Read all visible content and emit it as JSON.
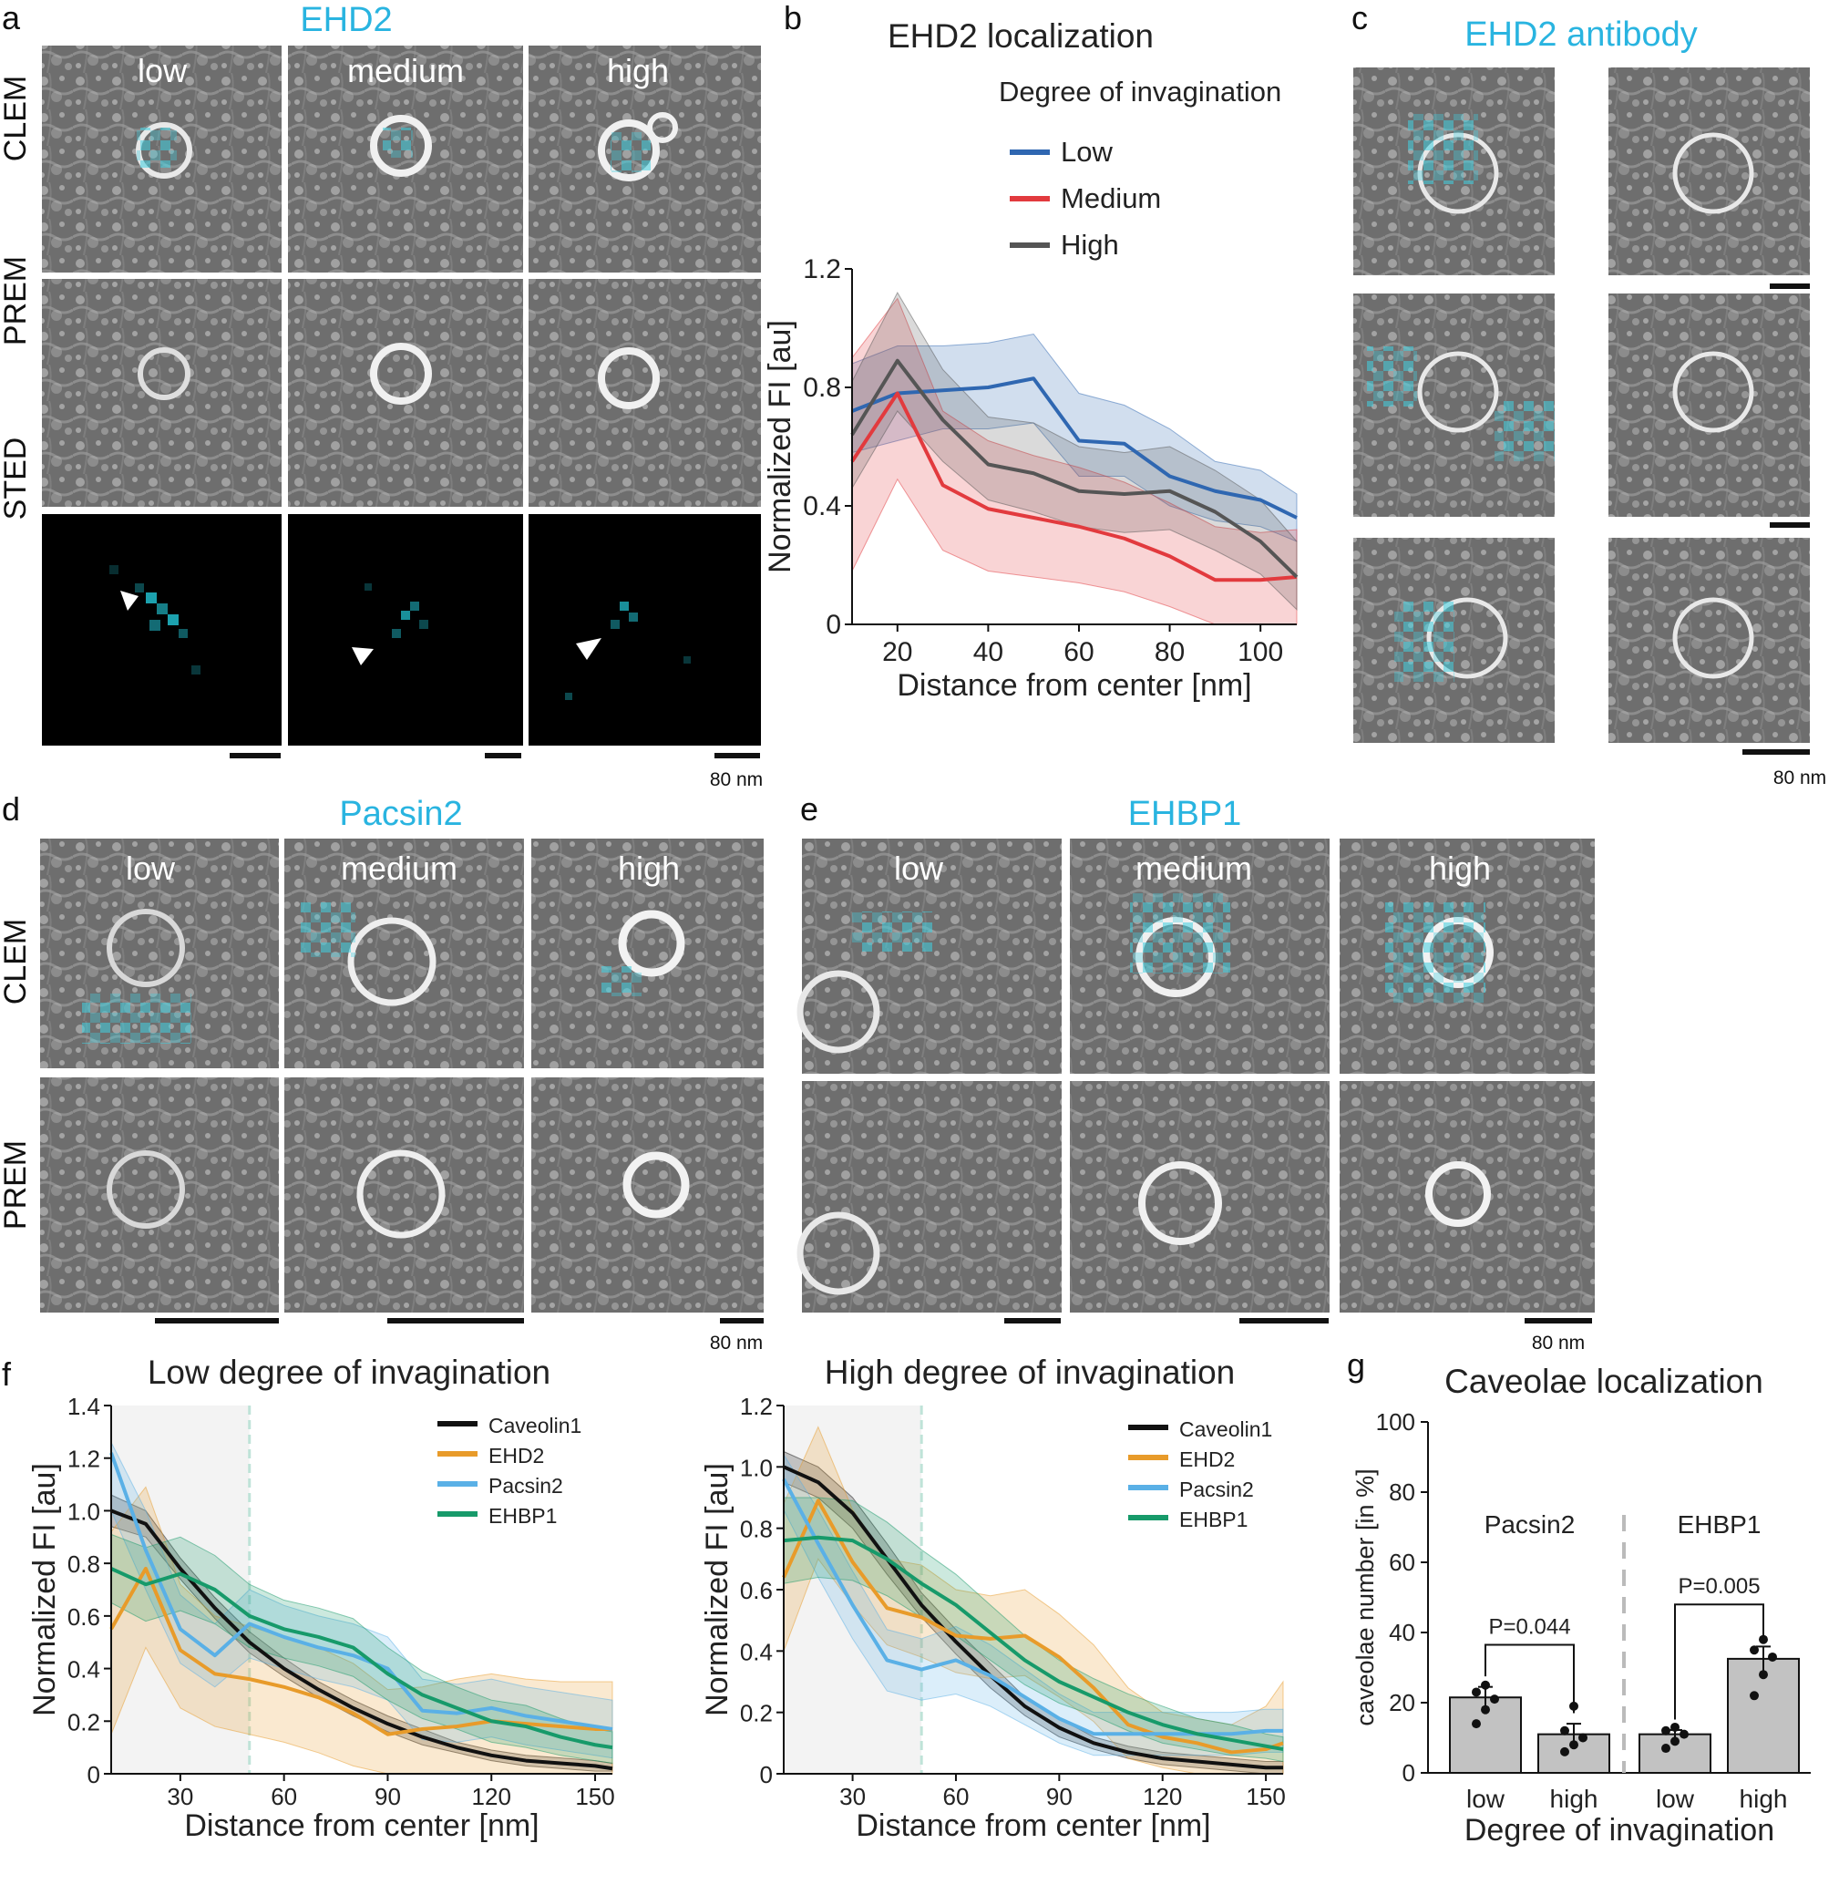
{
  "panels": {
    "a": {
      "letter": "a",
      "title": "EHD2",
      "cols": [
        "low",
        "medium",
        "high"
      ],
      "rows": [
        "CLEM",
        "PREM",
        "STED"
      ],
      "scale": "80 nm"
    },
    "b": {
      "letter": "b"
    },
    "c": {
      "letter": "c",
      "title": "EHD2 antibody",
      "scale": "80 nm"
    },
    "d": {
      "letter": "d",
      "title": "Pacsin2",
      "cols": [
        "low",
        "medium",
        "high"
      ],
      "rows": [
        "CLEM",
        "PREM"
      ],
      "scale": "80 nm"
    },
    "e": {
      "letter": "e",
      "title": "EHBP1",
      "cols": [
        "low",
        "medium",
        "high"
      ],
      "scale": "80 nm"
    },
    "f": {
      "letter": "f"
    },
    "g": {
      "letter": "g"
    }
  },
  "colors": {
    "cyan_title": "#29b4e0",
    "overlay": "#39c9d6",
    "low": "#2f67b1",
    "medium": "#e23a3e",
    "high": "#555555",
    "caveolin1": "#111111",
    "ehd2": "#e89b2a",
    "pacsin2": "#5ab0e6",
    "ehbp1": "#179a6a",
    "bar": "#c2c2c2"
  },
  "chart_data": [
    {
      "id": "b",
      "type": "line",
      "title": "EHD2 localization",
      "xlabel": "Distance from center [nm]",
      "ylabel": "Normalized FI [au]",
      "xlim": [
        10,
        108
      ],
      "ylim": [
        0,
        1.2
      ],
      "xticks": [
        20,
        40,
        60,
        80,
        100
      ],
      "yticks": [
        0,
        0.4,
        0.8,
        1.2
      ],
      "legend_title": "Degree of invagination",
      "series": [
        {
          "name": "Low",
          "x": [
            10,
            20,
            30,
            40,
            50,
            60,
            70,
            80,
            90,
            100,
            108
          ],
          "y": [
            0.72,
            0.78,
            0.79,
            0.8,
            0.83,
            0.62,
            0.61,
            0.5,
            0.45,
            0.42,
            0.36
          ],
          "lo": [
            0.58,
            0.62,
            0.66,
            0.66,
            0.68,
            0.5,
            0.5,
            0.4,
            0.35,
            0.33,
            0.28
          ],
          "hi": [
            0.88,
            0.94,
            0.94,
            0.95,
            0.98,
            0.78,
            0.74,
            0.66,
            0.55,
            0.52,
            0.44
          ]
        },
        {
          "name": "Medium",
          "x": [
            10,
            20,
            30,
            40,
            50,
            60,
            70,
            80,
            90,
            100,
            108
          ],
          "y": [
            0.55,
            0.78,
            0.47,
            0.39,
            0.36,
            0.33,
            0.29,
            0.23,
            0.15,
            0.15,
            0.16
          ],
          "lo": [
            0.18,
            0.49,
            0.25,
            0.18,
            0.16,
            0.14,
            0.11,
            0.06,
            0.0,
            0.0,
            0.0
          ],
          "hi": [
            0.9,
            1.1,
            0.72,
            0.62,
            0.57,
            0.53,
            0.48,
            0.41,
            0.33,
            0.31,
            0.32
          ]
        },
        {
          "name": "High",
          "x": [
            10,
            20,
            30,
            40,
            50,
            60,
            70,
            80,
            90,
            100,
            108
          ],
          "y": [
            0.64,
            0.89,
            0.69,
            0.54,
            0.51,
            0.45,
            0.44,
            0.45,
            0.38,
            0.28,
            0.16
          ],
          "lo": [
            0.46,
            0.72,
            0.55,
            0.42,
            0.38,
            0.33,
            0.31,
            0.32,
            0.25,
            0.17,
            0.05
          ],
          "hi": [
            0.82,
            1.12,
            0.86,
            0.7,
            0.68,
            0.6,
            0.58,
            0.6,
            0.52,
            0.42,
            0.28
          ]
        }
      ]
    },
    {
      "id": "f-low",
      "type": "line",
      "title": "Low degree of invagination",
      "xlabel": "Distance from center [nm]",
      "ylabel": "Normalized FI [au]",
      "xlim": [
        10,
        155
      ],
      "ylim": [
        0,
        1.4
      ],
      "xticks": [
        30,
        60,
        90,
        120,
        150
      ],
      "yticks": [
        0,
        0.2,
        0.4,
        0.6,
        0.8,
        1.0,
        1.2,
        1.4
      ],
      "shaded_region": [
        10,
        50
      ],
      "series": [
        {
          "name": "Caveolin1",
          "x": [
            10,
            20,
            30,
            40,
            50,
            60,
            70,
            80,
            90,
            100,
            110,
            120,
            130,
            140,
            150,
            155
          ],
          "y": [
            1.0,
            0.95,
            0.78,
            0.63,
            0.5,
            0.4,
            0.32,
            0.25,
            0.19,
            0.14,
            0.1,
            0.07,
            0.05,
            0.04,
            0.03,
            0.02
          ],
          "lo": [
            0.94,
            0.9,
            0.74,
            0.59,
            0.46,
            0.37,
            0.29,
            0.22,
            0.16,
            0.11,
            0.08,
            0.05,
            0.03,
            0.02,
            0.01,
            0.01
          ],
          "hi": [
            1.06,
            1.0,
            0.82,
            0.67,
            0.54,
            0.44,
            0.35,
            0.28,
            0.22,
            0.17,
            0.12,
            0.09,
            0.07,
            0.06,
            0.05,
            0.04
          ]
        },
        {
          "name": "EHD2",
          "x": [
            10,
            20,
            30,
            40,
            50,
            60,
            70,
            80,
            90,
            100,
            110,
            120,
            130,
            140,
            150,
            155
          ],
          "y": [
            0.55,
            0.78,
            0.47,
            0.38,
            0.36,
            0.33,
            0.29,
            0.23,
            0.15,
            0.17,
            0.18,
            0.2,
            0.19,
            0.18,
            0.17,
            0.17
          ],
          "lo": [
            0.15,
            0.48,
            0.25,
            0.18,
            0.15,
            0.12,
            0.08,
            0.03,
            0.0,
            0.0,
            0.0,
            0.0,
            0.0,
            0.0,
            0.0,
            0.0
          ],
          "hi": [
            0.92,
            1.09,
            0.72,
            0.6,
            0.56,
            0.52,
            0.48,
            0.42,
            0.32,
            0.33,
            0.36,
            0.38,
            0.36,
            0.35,
            0.35,
            0.35
          ]
        },
        {
          "name": "Pacsin2",
          "x": [
            10,
            20,
            30,
            40,
            50,
            60,
            70,
            80,
            90,
            100,
            110,
            120,
            130,
            140,
            150,
            155
          ],
          "y": [
            1.22,
            0.85,
            0.55,
            0.45,
            0.57,
            0.52,
            0.48,
            0.45,
            0.4,
            0.24,
            0.23,
            0.25,
            0.22,
            0.2,
            0.18,
            0.17
          ],
          "lo": [
            1.0,
            0.7,
            0.42,
            0.33,
            0.44,
            0.4,
            0.36,
            0.33,
            0.28,
            0.13,
            0.12,
            0.14,
            0.11,
            0.09,
            0.07,
            0.06
          ],
          "hi": [
            1.26,
            1.0,
            0.68,
            0.57,
            0.7,
            0.64,
            0.6,
            0.57,
            0.52,
            0.36,
            0.34,
            0.36,
            0.33,
            0.31,
            0.29,
            0.28
          ]
        },
        {
          "name": "EHBP1",
          "x": [
            10,
            20,
            30,
            40,
            50,
            60,
            70,
            80,
            90,
            100,
            110,
            120,
            130,
            140,
            150,
            155
          ],
          "y": [
            0.78,
            0.72,
            0.76,
            0.7,
            0.6,
            0.55,
            0.52,
            0.48,
            0.38,
            0.3,
            0.25,
            0.2,
            0.18,
            0.14,
            0.11,
            0.1
          ],
          "lo": [
            0.65,
            0.58,
            0.62,
            0.57,
            0.48,
            0.44,
            0.41,
            0.37,
            0.28,
            0.21,
            0.17,
            0.12,
            0.1,
            0.07,
            0.05,
            0.04
          ],
          "hi": [
            0.91,
            0.86,
            0.9,
            0.83,
            0.72,
            0.66,
            0.63,
            0.59,
            0.48,
            0.39,
            0.33,
            0.28,
            0.26,
            0.21,
            0.17,
            0.16
          ]
        }
      ]
    },
    {
      "id": "f-high",
      "type": "line",
      "title": "High degree of invagination",
      "xlabel": "Distance from center [nm]",
      "ylabel": "Normalized FI [au]",
      "xlim": [
        10,
        155
      ],
      "ylim": [
        0,
        1.2
      ],
      "xticks": [
        30,
        60,
        90,
        120,
        150
      ],
      "yticks": [
        0,
        0.2,
        0.4,
        0.6,
        0.8,
        1.0,
        1.2
      ],
      "shaded_region": [
        10,
        50
      ],
      "series": [
        {
          "name": "Caveolin1",
          "x": [
            10,
            20,
            30,
            40,
            50,
            60,
            70,
            80,
            90,
            100,
            110,
            120,
            130,
            140,
            150,
            155
          ],
          "y": [
            1.0,
            0.95,
            0.85,
            0.7,
            0.55,
            0.43,
            0.32,
            0.22,
            0.15,
            0.1,
            0.07,
            0.05,
            0.04,
            0.03,
            0.02,
            0.02
          ],
          "lo": [
            0.95,
            0.9,
            0.8,
            0.65,
            0.51,
            0.39,
            0.28,
            0.19,
            0.12,
            0.08,
            0.05,
            0.03,
            0.02,
            0.01,
            0.0,
            0.0
          ],
          "hi": [
            1.05,
            1.0,
            0.9,
            0.75,
            0.59,
            0.47,
            0.36,
            0.25,
            0.18,
            0.12,
            0.09,
            0.07,
            0.06,
            0.05,
            0.04,
            0.04
          ]
        },
        {
          "name": "EHD2",
          "x": [
            10,
            20,
            30,
            40,
            50,
            60,
            70,
            80,
            90,
            100,
            110,
            120,
            130,
            140,
            150,
            155
          ],
          "y": [
            0.64,
            0.89,
            0.69,
            0.54,
            0.51,
            0.45,
            0.44,
            0.45,
            0.38,
            0.28,
            0.16,
            0.12,
            0.1,
            0.07,
            0.08,
            0.1
          ],
          "lo": [
            0.4,
            0.7,
            0.55,
            0.42,
            0.38,
            0.33,
            0.31,
            0.32,
            0.25,
            0.17,
            0.05,
            0.02,
            0.0,
            0.0,
            0.0,
            0.0
          ],
          "hi": [
            0.88,
            1.13,
            0.86,
            0.7,
            0.68,
            0.6,
            0.58,
            0.6,
            0.52,
            0.42,
            0.28,
            0.2,
            0.18,
            0.16,
            0.22,
            0.3
          ]
        },
        {
          "name": "Pacsin2",
          "x": [
            10,
            20,
            30,
            40,
            50,
            60,
            70,
            80,
            90,
            100,
            110,
            120,
            130,
            140,
            150,
            155
          ],
          "y": [
            0.96,
            0.75,
            0.55,
            0.37,
            0.34,
            0.37,
            0.32,
            0.25,
            0.18,
            0.13,
            0.13,
            0.13,
            0.13,
            0.13,
            0.14,
            0.14
          ],
          "lo": [
            0.86,
            0.64,
            0.44,
            0.27,
            0.24,
            0.26,
            0.22,
            0.16,
            0.1,
            0.06,
            0.06,
            0.06,
            0.06,
            0.06,
            0.07,
            0.07
          ],
          "hi": [
            1.04,
            0.86,
            0.66,
            0.47,
            0.44,
            0.48,
            0.42,
            0.34,
            0.26,
            0.2,
            0.2,
            0.2,
            0.2,
            0.2,
            0.21,
            0.21
          ]
        },
        {
          "name": "EHBP1",
          "x": [
            10,
            20,
            30,
            40,
            50,
            60,
            70,
            80,
            90,
            100,
            110,
            120,
            130,
            140,
            150,
            155
          ],
          "y": [
            0.76,
            0.77,
            0.76,
            0.7,
            0.62,
            0.55,
            0.46,
            0.37,
            0.3,
            0.25,
            0.2,
            0.16,
            0.13,
            0.11,
            0.09,
            0.08
          ],
          "lo": [
            0.62,
            0.64,
            0.63,
            0.58,
            0.51,
            0.45,
            0.37,
            0.29,
            0.23,
            0.19,
            0.14,
            0.1,
            0.08,
            0.06,
            0.05,
            0.04
          ],
          "hi": [
            0.9,
            0.9,
            0.89,
            0.82,
            0.73,
            0.65,
            0.55,
            0.45,
            0.37,
            0.31,
            0.26,
            0.22,
            0.18,
            0.16,
            0.13,
            0.12
          ]
        }
      ]
    },
    {
      "id": "g",
      "type": "bar",
      "title": "Caveolae localization",
      "xlabel": "Degree of invagination",
      "ylabel": "caveolae number [in %]",
      "ylim": [
        0,
        100
      ],
      "yticks": [
        0,
        20,
        40,
        60,
        80,
        100
      ],
      "groups": [
        {
          "name": "Pacsin2",
          "categories": [
            "low",
            "high"
          ],
          "values": [
            21.5,
            11
          ],
          "errors": [
            3.0,
            3.0
          ],
          "points": [
            [
              14,
              18,
              21,
              23,
              25
            ],
            [
              6,
              8,
              10,
              12,
              19
            ]
          ],
          "p_label": "P=0.044"
        },
        {
          "name": "EHBP1",
          "categories": [
            "low",
            "high"
          ],
          "values": [
            11,
            32.5
          ],
          "errors": [
            1.2,
            3.5
          ],
          "points": [
            [
              7,
              9,
              11,
              12,
              13
            ],
            [
              22,
              28,
              33,
              35,
              38
            ]
          ],
          "p_label": "P=0.005"
        }
      ]
    }
  ]
}
